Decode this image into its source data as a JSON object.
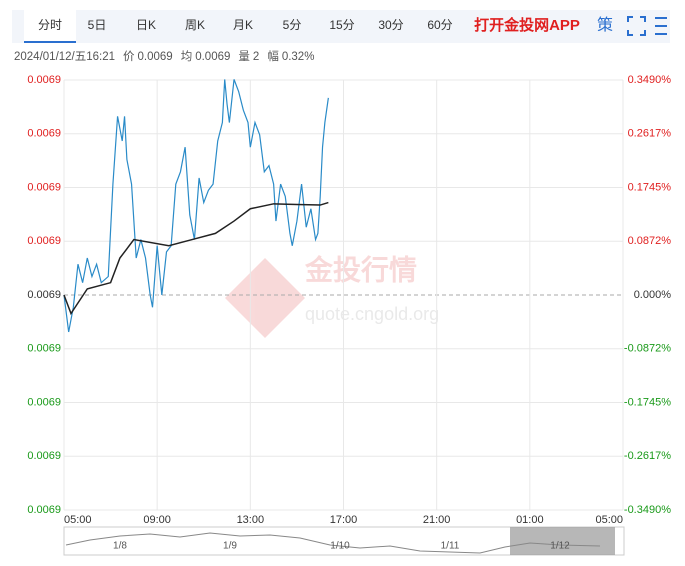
{
  "tabs": [
    "分时",
    "5日",
    "日K",
    "周K",
    "月K",
    "5分",
    "15分",
    "30分",
    "60分"
  ],
  "active_tab": 0,
  "app_link": "打开金投网APP",
  "strategy_icon": "策",
  "info": {
    "time": "2024/01/12/五16:21",
    "price_label": "价",
    "price": "0.0069",
    "avg_label": "均",
    "avg": "0.0069",
    "volume_label": "量",
    "volume": "2",
    "change_label": "幅",
    "change": "0.32%"
  },
  "watermark": {
    "name": "金投行情",
    "url": "quote.cngold.org"
  },
  "navigator": {
    "labels": [
      "1/8",
      "1/9",
      "1/10",
      "1/11",
      "1/12"
    ]
  },
  "chart_data": {
    "type": "line",
    "up_color": "#e02020",
    "down_color": "#1a9a1a",
    "flat_color": "#333333",
    "ylim": [
      -0.349,
      0.349
    ],
    "yticks": [
      {
        "value": 0.349,
        "label": "0.3490%"
      },
      {
        "value": 0.2617,
        "label": "0.2617%"
      },
      {
        "value": 0.1745,
        "label": "0.1745%"
      },
      {
        "value": 0.0872,
        "label": "0.0872%"
      },
      {
        "value": 0,
        "label": "0.000%"
      },
      {
        "value": -0.0872,
        "label": "-0.0872%"
      },
      {
        "value": -0.1745,
        "label": "-0.1745%"
      },
      {
        "value": -0.2617,
        "label": "-0.2617%"
      },
      {
        "value": -0.349,
        "label": "-0.3490%"
      }
    ],
    "left_labels": [
      "0.0069",
      "0.0069",
      "0.0069",
      "0.0069",
      "0.0069",
      "0.0069",
      "0.0069",
      "0.0069",
      "0.0069"
    ],
    "xlim": [
      0,
      24
    ],
    "xticks": [
      {
        "value": 0,
        "label": "05:00"
      },
      {
        "value": 4,
        "label": "09:00"
      },
      {
        "value": 8,
        "label": "13:00"
      },
      {
        "value": 12,
        "label": "17:00"
      },
      {
        "value": 16,
        "label": "21:00"
      },
      {
        "value": 20,
        "label": "01:00"
      },
      {
        "value": 24,
        "label": "05:00"
      }
    ],
    "grid": true,
    "series": [
      {
        "name": "价",
        "color": "#2a8bc8",
        "x": [
          0,
          0.2,
          0.4,
          0.6,
          0.8,
          1.0,
          1.2,
          1.4,
          1.6,
          1.9,
          2.1,
          2.3,
          2.5,
          2.6,
          2.7,
          2.9,
          3.1,
          3.3,
          3.5,
          3.7,
          3.8,
          4.0,
          4.2,
          4.4,
          4.6,
          4.8,
          5.0,
          5.2,
          5.4,
          5.6,
          5.8,
          6.0,
          6.2,
          6.4,
          6.6,
          6.8,
          6.9,
          7.0,
          7.1,
          7.3,
          7.5,
          7.7,
          7.9,
          8.0,
          8.2,
          8.4,
          8.6,
          8.8,
          9.0,
          9.1,
          9.3,
          9.5,
          9.7,
          9.8,
          10.0,
          10.2,
          10.4,
          10.6,
          10.8,
          10.9,
          11.0,
          11.1,
          11.2,
          11.35
        ],
        "values": [
          0,
          -0.06,
          -0.02,
          0.05,
          0.02,
          0.06,
          0.03,
          0.05,
          0.02,
          0.03,
          0.18,
          0.29,
          0.25,
          0.29,
          0.22,
          0.18,
          0.06,
          0.09,
          0.06,
          0,
          -0.02,
          0.08,
          0,
          0.07,
          0.08,
          0.18,
          0.2,
          0.24,
          0.13,
          0.09,
          0.19,
          0.15,
          0.17,
          0.18,
          0.25,
          0.28,
          0.35,
          0.31,
          0.28,
          0.35,
          0.33,
          0.3,
          0.28,
          0.24,
          0.28,
          0.26,
          0.2,
          0.21,
          0.18,
          0.12,
          0.18,
          0.16,
          0.1,
          0.08,
          0.12,
          0.18,
          0.11,
          0.14,
          0.09,
          0.1,
          0.16,
          0.24,
          0.28,
          0.32
        ]
      },
      {
        "name": "均",
        "color": "#222222",
        "x": [
          0,
          0.3,
          1,
          2,
          2.4,
          3,
          4.5,
          5.5,
          6.5,
          7.3,
          8,
          9,
          10,
          11,
          11.35
        ],
        "values": [
          0,
          -0.03,
          0.01,
          0.02,
          0.06,
          0.09,
          0.08,
          0.09,
          0.1,
          0.12,
          0.14,
          0.148,
          0.147,
          0.146,
          0.15
        ]
      }
    ]
  }
}
